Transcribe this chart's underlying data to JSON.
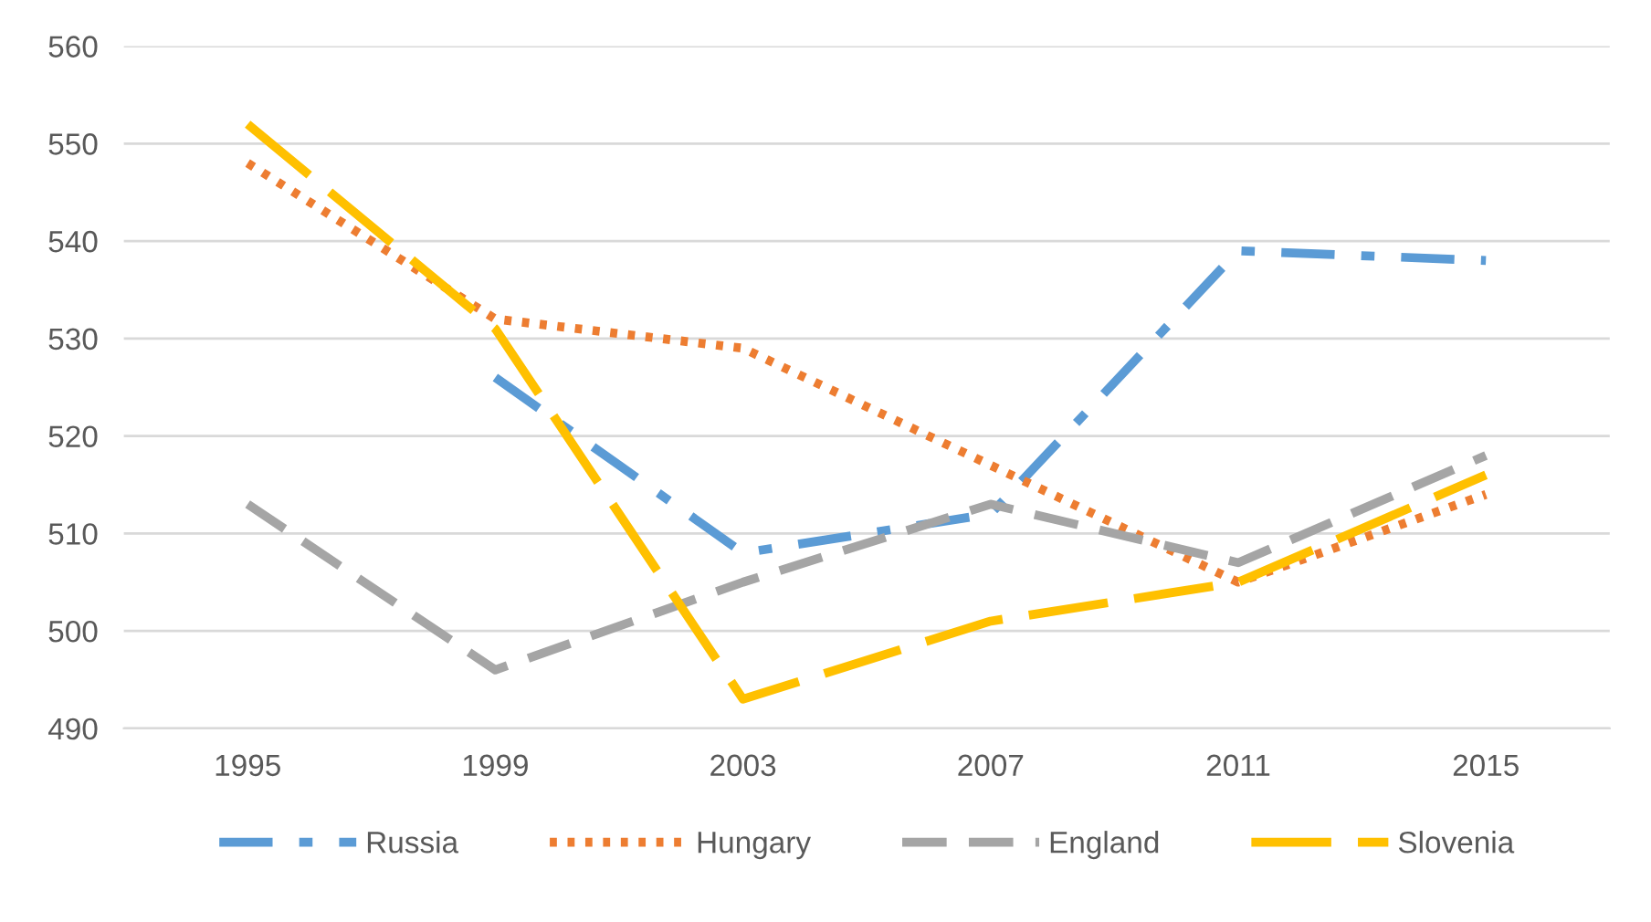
{
  "chart_data": {
    "type": "line",
    "categories": [
      "1995",
      "1999",
      "2003",
      "2007",
      "2011",
      "2015"
    ],
    "series": [
      {
        "name": "Russia",
        "color": "#5b9bd5",
        "line_style": "dashdot",
        "values": [
          null,
          526,
          508,
          512,
          539,
          538
        ]
      },
      {
        "name": "Hungary",
        "color": "#ed7d31",
        "line_style": "dotted",
        "values": [
          548,
          532,
          529,
          517,
          505,
          514
        ]
      },
      {
        "name": "England",
        "color": "#a5a5a5",
        "line_style": "dashed",
        "values": [
          513,
          496,
          505,
          513,
          507,
          518
        ]
      },
      {
        "name": "Slovenia",
        "color": "#ffc000",
        "line_style": "longdash",
        "values": [
          552,
          531,
          493,
          501,
          505,
          516
        ]
      }
    ],
    "ylim": [
      490,
      560
    ],
    "yticks": [
      490,
      500,
      510,
      520,
      530,
      540,
      550,
      560
    ],
    "grid": "y",
    "legend": "bottom",
    "marker": "none"
  }
}
